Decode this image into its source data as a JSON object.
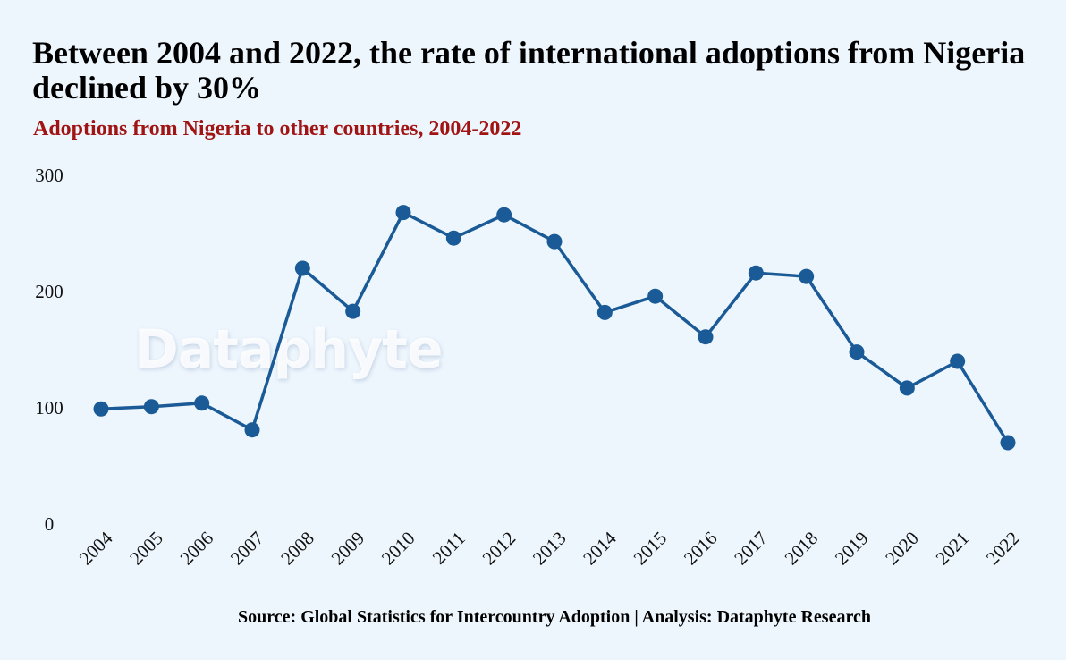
{
  "header": {
    "title": "Between 2004 and 2022, the rate of international adoptions from Nigeria declined by 30%",
    "subtitle": "Adoptions from Nigeria to other countries, 2004-2022"
  },
  "watermark": "Dataphyte",
  "footer": {
    "source": "Source: Global Statistics for Intercountry Adoption | Analysis: Dataphyte Research"
  },
  "colors": {
    "background": "#eef6fd",
    "line": "#1a5a96",
    "subtitle": "#a01414"
  },
  "chart_data": {
    "type": "line",
    "title": "Between 2004 and 2022, the rate of international adoptions from Nigeria declined by 30%",
    "subtitle": "Adoptions from Nigeria to other countries, 2004-2022",
    "xlabel": "",
    "ylabel": "",
    "categories": [
      "2004",
      "2005",
      "2006",
      "2007",
      "2008",
      "2009",
      "2010",
      "2011",
      "2012",
      "2013",
      "2014",
      "2015",
      "2016",
      "2017",
      "2018",
      "2019",
      "2020",
      "2021",
      "2022"
    ],
    "series": [
      {
        "name": "Adoptions from Nigeria",
        "values": [
          99,
          101,
          104,
          81,
          220,
          183,
          268,
          246,
          266,
          243,
          182,
          196,
          161,
          216,
          213,
          148,
          117,
          140,
          70
        ]
      }
    ],
    "ylim": [
      0,
      300
    ],
    "yticks": [
      0,
      100,
      200,
      300
    ],
    "grid": false,
    "legend": "none"
  }
}
